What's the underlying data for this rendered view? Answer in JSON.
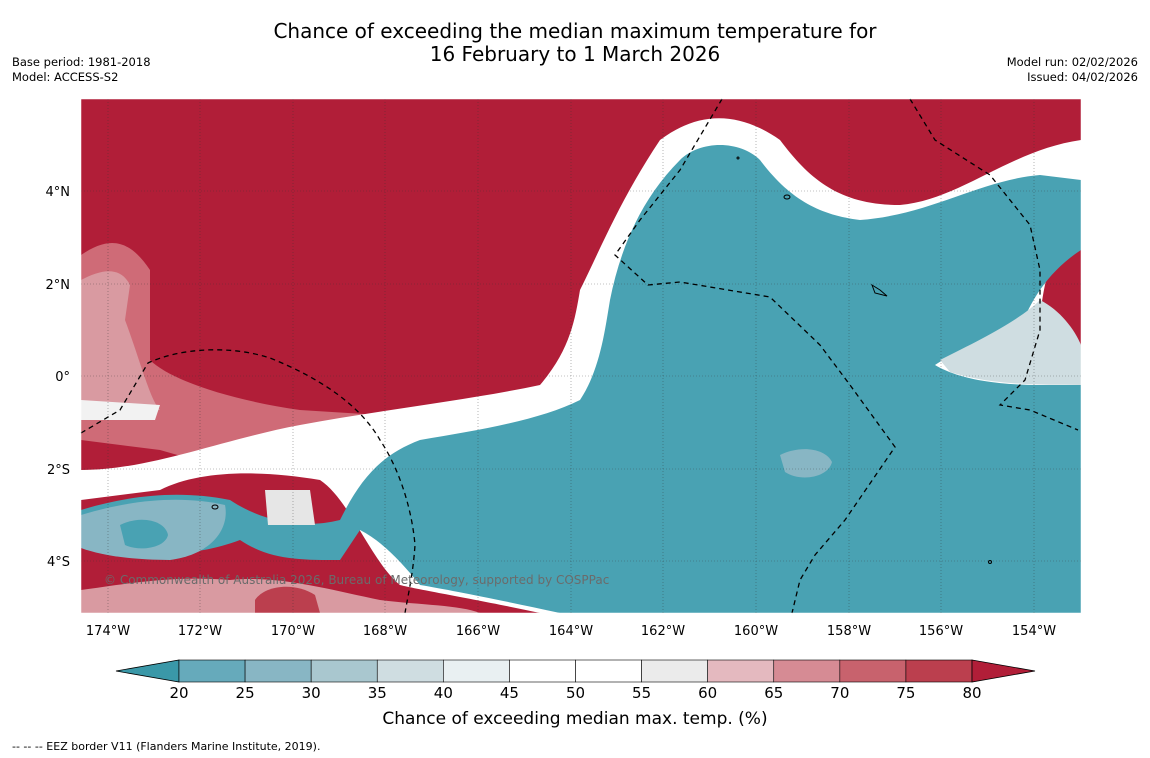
{
  "title_line1": "Chance of exceeding the median maximum temperature for",
  "title_line2": "16 February to 1 March 2026",
  "base_period": "Base period: 1981-2018",
  "model": "Model: ACCESS-S2",
  "model_run": "Model run: 02/02/2026",
  "issued": "Issued: 04/02/2026",
  "copyright": "© Commonwealth of Australia 2026, Bureau of Meteorology, supported by COSPPac",
  "lon_labels": [
    "174°W",
    "172°W",
    "170°W",
    "168°W",
    "166°W",
    "164°W",
    "162°W",
    "160°W",
    "158°W",
    "156°W",
    "154°W"
  ],
  "lat_labels": [
    "4°N",
    "2°N",
    "0°",
    "2°S",
    "4°S"
  ],
  "colorbar": {
    "title": "Chance of exceeding median max. temp. (%)",
    "ticks": [
      "20",
      "25",
      "30",
      "35",
      "40",
      "45",
      "50",
      "55",
      "60",
      "65",
      "70",
      "75",
      "80"
    ],
    "colors": [
      "#3a98a8",
      "#66aabb",
      "#88b6c4",
      "#a9c7cf",
      "#cfdde1",
      "#e9f0f2",
      "#ffffff",
      "#ffffff",
      "#ebebeb",
      "#e4b9bf",
      "#d68b94",
      "#c8626d",
      "#bb3f4e",
      "#b11e38"
    ]
  },
  "legend_note": "--  --  -- EEZ border V11 (Flanders Marine Institute, 2019).",
  "colors": {
    "hot": "#b11e38",
    "cool": "#49a2b3"
  }
}
